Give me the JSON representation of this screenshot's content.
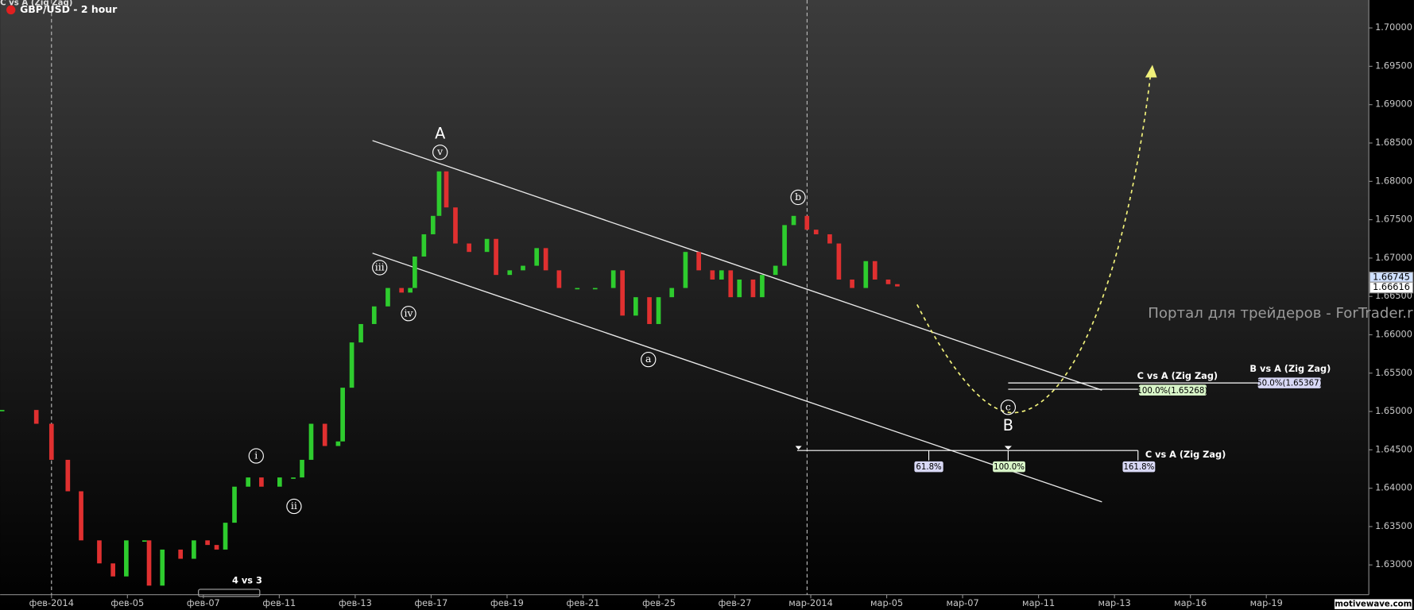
{
  "chart_data": {
    "type": "candlestick",
    "title": "GBP/USD - 2 hour",
    "overlay_title": "C vs A (Zig Zag)",
    "xlim": [
      -1.354,
      34.7
    ],
    "xticks": [
      {
        "value": 0,
        "label": "фев-2014"
      },
      {
        "value": 2,
        "label": "фев-05"
      },
      {
        "value": 4,
        "label": "фев-07"
      },
      {
        "value": 6,
        "label": "фев-11"
      },
      {
        "value": 8,
        "label": "фев-13"
      },
      {
        "value": 10,
        "label": "фев-17"
      },
      {
        "value": 12,
        "label": "фев-19"
      },
      {
        "value": 14,
        "label": "фев-21"
      },
      {
        "value": 16,
        "label": "фев-25"
      },
      {
        "value": 18,
        "label": "фев-27"
      },
      {
        "value": 20,
        "label": "мар-2014"
      },
      {
        "value": 22,
        "label": "мар-05"
      },
      {
        "value": 24,
        "label": "мар-07"
      },
      {
        "value": 26,
        "label": "мар-11"
      },
      {
        "value": 28,
        "label": "мар-13"
      },
      {
        "value": 30,
        "label": "мар-16"
      },
      {
        "value": 32,
        "label": "мар-19"
      }
    ],
    "ylim": [
      1.62612,
      1.70364
    ],
    "yticks": [
      {
        "value": 1.63,
        "label": "1.63000"
      },
      {
        "value": 1.635,
        "label": "1.63500"
      },
      {
        "value": 1.64,
        "label": "1.64000"
      },
      {
        "value": 1.645,
        "label": "1.64500"
      },
      {
        "value": 1.65,
        "label": "1.65000"
      },
      {
        "value": 1.655,
        "label": "1.65500"
      },
      {
        "value": 1.66,
        "label": "1.66000"
      },
      {
        "value": 1.665,
        "label": "1.66500"
      },
      {
        "value": 1.67,
        "label": "1.67000"
      },
      {
        "value": 1.675,
        "label": "1.67500"
      },
      {
        "value": 1.68,
        "label": "1.68000"
      },
      {
        "value": 1.685,
        "label": "1.68500"
      },
      {
        "value": 1.69,
        "label": "1.69000"
      },
      {
        "value": 1.695,
        "label": "1.69500"
      },
      {
        "value": 1.7,
        "label": "1.70000"
      }
    ],
    "up_color": "#2ecc2e",
    "down_color": "#e03030",
    "x": [
      -1.3,
      -0.4,
      0,
      0.43,
      0.78,
      1.26,
      1.62,
      1.97,
      2.45,
      2.57,
      2.92,
      3.4,
      3.75,
      4.11,
      4.35,
      4.58,
      4.82,
      5.18,
      5.53,
      6.01,
      6.37,
      6.6,
      6.84,
      7.2,
      7.55,
      7.67,
      7.91,
      8.15,
      8.5,
      8.86,
      9.22,
      9.45,
      9.57,
      9.81,
      10.05,
      10.21,
      10.4,
      10.64,
      11,
      11.47,
      11.71,
      12.07,
      12.42,
      12.78,
      13.02,
      13.37,
      13.85,
      14.32,
      14.8,
      15.04,
      15.39,
      15.75,
      15.99,
      16.34,
      16.7,
      17.05,
      17.41,
      17.65,
      17.89,
      18.12,
      18.48,
      18.72,
      19.07,
      19.31,
      19.55,
      19.9,
      20.14,
      20.5,
      20.74,
      21.09,
      21.45,
      21.69,
      22.04,
      22.28
    ],
    "series": [
      {
        "name": "GBP/USD",
        "values": [
          1.6502,
          1.6484,
          1.6437,
          1.6396,
          1.6332,
          1.6302,
          1.6285,
          1.6332,
          1.6332,
          1.6273,
          1.632,
          1.6308,
          1.6332,
          1.6326,
          1.632,
          1.6355,
          1.6402,
          1.6414,
          1.6402,
          1.6414,
          1.6414,
          1.6437,
          1.6484,
          1.6455,
          1.6461,
          1.6531,
          1.659,
          1.6614,
          1.6637,
          1.6661,
          1.6655,
          1.6661,
          1.6702,
          1.6731,
          1.6755,
          1.6813,
          1.6766,
          1.6719,
          1.6708,
          1.6725,
          1.6678,
          1.6684,
          1.669,
          1.6713,
          1.6684,
          1.6661,
          1.6661,
          1.6661,
          1.6684,
          1.6625,
          1.6649,
          1.6614,
          1.6649,
          1.6661,
          1.6708,
          1.6684,
          1.6672,
          1.6684,
          1.6649,
          1.6672,
          1.6649,
          1.6678,
          1.669,
          1.6743,
          1.6755,
          1.6737,
          1.6731,
          1.6719,
          1.6672,
          1.6661,
          1.6696,
          1.6672,
          1.6666,
          1.6663
        ]
      }
    ],
    "price_tags": [
      {
        "value": 1.66745,
        "label": "1.66745"
      },
      {
        "value": 1.66616,
        "label": "1.66616"
      }
    ],
    "waves": {
      "A": "A",
      "B": "B",
      "v": "v",
      "iii": "iii",
      "iv": "iv",
      "i": "i",
      "ii": "ii",
      "a": "a",
      "b": "b",
      "c": "c"
    },
    "fib": {
      "c_vs_a_upper": "C vs A (Zig Zag)",
      "b_vs_a": "B vs A (Zig Zag)",
      "c_level": "100.0%(1.65268)",
      "b_level": "50.0%(1.65367)",
      "c_vs_a_lower": "C vs A (Zig Zag)",
      "r618": "61.8%",
      "r100": "100.0%",
      "r1618": "161.8%",
      "four_vs_three": "4 vs 3"
    },
    "watermark": "Портал для трейдеров - ForTrader.ru",
    "brand": "motivewave.com"
  }
}
